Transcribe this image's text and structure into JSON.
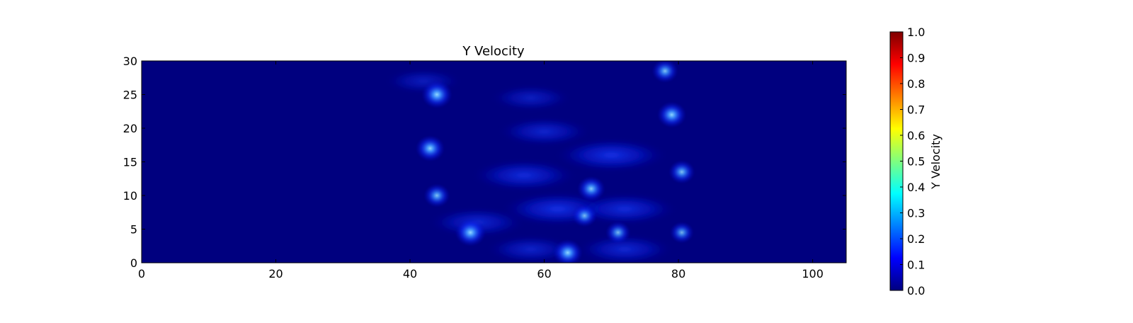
{
  "chart_data": {
    "type": "heatmap",
    "title": "Y Velocity",
    "xlabel": "",
    "ylabel": "",
    "xlim": [
      0,
      105
    ],
    "ylim": [
      0,
      30
    ],
    "x_ticks": [
      0,
      20,
      40,
      60,
      80,
      100
    ],
    "y_ticks": [
      0,
      5,
      10,
      15,
      20,
      25,
      30
    ],
    "background_value": 0.0,
    "colorbar": {
      "label": "Y Velocity",
      "range": [
        0.0,
        1.0
      ],
      "ticks": [
        "0.0",
        "0.1",
        "0.2",
        "0.3",
        "0.4",
        "0.5",
        "0.6",
        "0.7",
        "0.8",
        "0.9",
        "1.0"
      ],
      "colormap": "jet",
      "colors": [
        "#00007f",
        "#0000ff",
        "#007fff",
        "#00ffff",
        "#7fff7f",
        "#ffff00",
        "#ff7f00",
        "#ff0000",
        "#7f0000"
      ]
    },
    "hotspots": [
      {
        "x": 44,
        "y": 25,
        "value": 0.3
      },
      {
        "x": 43,
        "y": 17,
        "value": 0.27
      },
      {
        "x": 44,
        "y": 10,
        "value": 0.22
      },
      {
        "x": 49,
        "y": 4.5,
        "value": 0.3
      },
      {
        "x": 63.5,
        "y": 1.5,
        "value": 0.28
      },
      {
        "x": 71,
        "y": 4.5,
        "value": 0.2
      },
      {
        "x": 67,
        "y": 11,
        "value": 0.25
      },
      {
        "x": 66,
        "y": 7,
        "value": 0.2
      },
      {
        "x": 78,
        "y": 28.5,
        "value": 0.22
      },
      {
        "x": 79,
        "y": 22,
        "value": 0.27
      },
      {
        "x": 80.5,
        "y": 13.5,
        "value": 0.22
      },
      {
        "x": 80.5,
        "y": 4.5,
        "value": 0.18
      }
    ],
    "plumes": [
      {
        "x": 58,
        "y": 24.5,
        "value": 0.06
      },
      {
        "x": 60,
        "y": 19.5,
        "value": 0.09
      },
      {
        "x": 70,
        "y": 16,
        "value": 0.14
      },
      {
        "x": 57,
        "y": 13,
        "value": 0.12
      },
      {
        "x": 62,
        "y": 8,
        "value": 0.14
      },
      {
        "x": 72,
        "y": 8,
        "value": 0.12
      },
      {
        "x": 58,
        "y": 2,
        "value": 0.08
      },
      {
        "x": 72,
        "y": 2,
        "value": 0.1
      },
      {
        "x": 42,
        "y": 27,
        "value": 0.05
      },
      {
        "x": 50,
        "y": 6,
        "value": 0.1
      }
    ]
  }
}
